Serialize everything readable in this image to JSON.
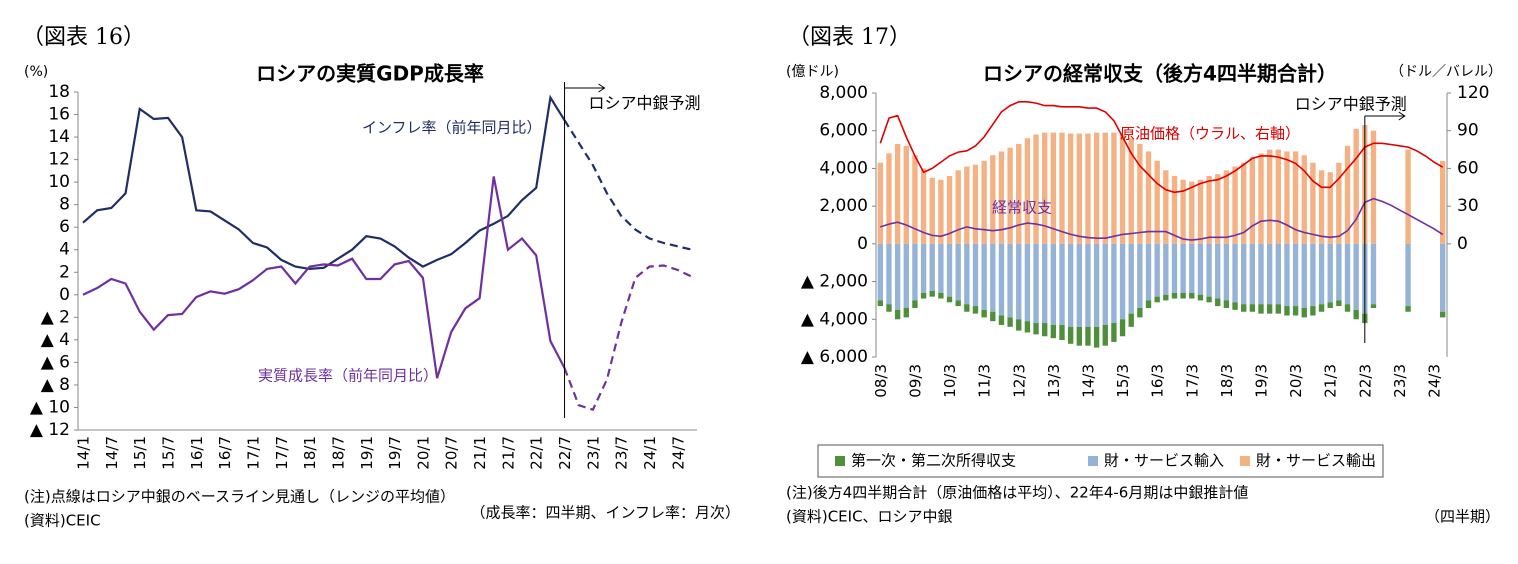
{
  "chart_data": [
    {
      "type": "line",
      "figure_label": "（図表 16）",
      "title": "ロシアの実質GDP成長率",
      "y_unit": "(%)",
      "categories": [
        "14/1",
        null,
        "14/7",
        null,
        "15/1",
        null,
        "15/7",
        null,
        "16/1",
        null,
        "16/7",
        null,
        "17/1",
        null,
        "17/7",
        null,
        "18/1",
        null,
        "18/7",
        null,
        "19/1",
        null,
        "19/7",
        null,
        "20/1",
        null,
        "20/7",
        null,
        "21/1",
        null,
        "21/7",
        null,
        "22/1",
        null,
        "22/7",
        null,
        "23/1",
        null,
        "23/7",
        null,
        "24/1",
        null,
        "24/7",
        null
      ],
      "series": [
        {
          "name": "インフレ率（前年同月比）",
          "color": "#1f2f66",
          "values": [
            6.4,
            7.5,
            7.7,
            9.0,
            16.5,
            15.6,
            15.7,
            14.0,
            7.5,
            7.4,
            6.6,
            5.8,
            4.6,
            4.2,
            3.1,
            2.5,
            2.3,
            2.4,
            3.2,
            4.0,
            5.2,
            5.0,
            4.3,
            3.3,
            2.5,
            3.1,
            3.6,
            4.6,
            5.7,
            6.3,
            7.0,
            8.4,
            9.5,
            17.5,
            15.5,
            13.5,
            11.5,
            9.0,
            7.0,
            5.8,
            5.0,
            4.6,
            4.3,
            4.0
          ]
        },
        {
          "name": "実質成長率（前年同月比）",
          "color": "#7030a0",
          "values": [
            0.0,
            0.6,
            1.4,
            1.0,
            -1.5,
            -3.1,
            -1.8,
            -1.7,
            -0.2,
            0.3,
            0.1,
            0.5,
            1.3,
            2.3,
            2.5,
            1.0,
            2.5,
            2.7,
            2.6,
            3.2,
            1.4,
            1.4,
            2.7,
            3.0,
            1.5,
            -7.4,
            -3.3,
            -1.2,
            -0.3,
            10.5,
            4.0,
            5.0,
            3.5,
            -4.1,
            -6.5,
            -9.8,
            -10.2,
            -7.5,
            -2.5,
            1.5,
            2.5,
            2.6,
            2.2,
            1.6
          ]
        }
      ],
      "ylim": [
        -12,
        18
      ],
      "yticks": [
        18,
        16,
        14,
        12,
        10,
        8,
        6,
        4,
        2,
        0,
        {
          "value": -2,
          "label": "▲ 2"
        },
        {
          "value": -4,
          "label": "▲ 4"
        },
        {
          "value": -6,
          "label": "▲ 6"
        },
        {
          "value": -8,
          "label": "▲ 8"
        },
        {
          "value": -10,
          "label": "▲ 10"
        },
        {
          "value": -12,
          "label": "▲ 12"
        }
      ],
      "grid": false,
      "forecast": {
        "label": "ロシア中銀予測",
        "at": "22/7",
        "line_style": "dashed"
      },
      "notes": [
        "(注)点線はロシア中銀のベースライン見通し（レンジの平均値）",
        "(資料)CEIC"
      ],
      "note_right": "（成長率：四半期、インフレ率：月次）"
    },
    {
      "type": "combo",
      "figure_label": "（図表 17）",
      "title": "ロシアの経常収支（後方4四半期合計）",
      "y_unit": "(億ドル)",
      "y2_unit": "（ドル／バレル）",
      "categories": [
        "08/3",
        null,
        null,
        null,
        "09/3",
        null,
        null,
        null,
        "10/3",
        null,
        null,
        null,
        "11/3",
        null,
        null,
        null,
        "12/3",
        null,
        null,
        null,
        "13/3",
        null,
        null,
        null,
        "14/3",
        null,
        null,
        null,
        "15/3",
        null,
        null,
        null,
        "16/3",
        null,
        null,
        null,
        "17/3",
        null,
        null,
        null,
        "18/3",
        null,
        null,
        null,
        "19/3",
        null,
        null,
        null,
        "20/3",
        null,
        null,
        null,
        "21/3",
        null,
        null,
        null,
        "22/3",
        null,
        null,
        null,
        "23/3",
        null,
        null,
        null,
        "24/3",
        null
      ],
      "series": [
        {
          "name": "第一次・第二次所得収支",
          "type": "bar",
          "color": "#4e8f3a",
          "values": [
            -300,
            -400,
            -500,
            -500,
            -400,
            -300,
            -300,
            -300,
            -300,
            -300,
            -400,
            -400,
            -400,
            -500,
            -500,
            -500,
            -600,
            -600,
            -600,
            -700,
            -700,
            -800,
            -900,
            -1000,
            -1000,
            -1100,
            -1100,
            -1000,
            -900,
            -700,
            -500,
            -400,
            -300,
            -300,
            -300,
            -300,
            -300,
            -300,
            -300,
            -400,
            -400,
            -400,
            -400,
            -400,
            -500,
            -500,
            -500,
            -500,
            -500,
            -500,
            -500,
            -400,
            -300,
            -300,
            -400,
            -500,
            -500,
            -200,
            null,
            null,
            null,
            -300,
            null,
            null,
            null,
            -300
          ]
        },
        {
          "name": "財・サービス輸入",
          "type": "bar",
          "color": "#95b3d7",
          "values": [
            -3000,
            -3200,
            -3500,
            -3400,
            -3000,
            -2600,
            -2500,
            -2600,
            -2800,
            -3000,
            -3200,
            -3300,
            -3500,
            -3600,
            -3800,
            -3900,
            -4000,
            -4100,
            -4200,
            -4200,
            -4300,
            -4300,
            -4400,
            -4400,
            -4400,
            -4400,
            -4300,
            -4200,
            -4000,
            -3700,
            -3400,
            -3000,
            -2800,
            -2700,
            -2600,
            -2600,
            -2600,
            -2700,
            -2800,
            -2900,
            -3000,
            -3100,
            -3200,
            -3200,
            -3200,
            -3200,
            -3200,
            -3300,
            -3300,
            -3400,
            -3300,
            -3200,
            -3100,
            -3000,
            -3200,
            -3500,
            -3700,
            -3200,
            null,
            null,
            null,
            -3300,
            null,
            null,
            null,
            -3600
          ]
        },
        {
          "name": "財・サービス輸出",
          "type": "bar",
          "color": "#f4b183",
          "values": [
            4300,
            4800,
            5300,
            5200,
            4700,
            4000,
            3500,
            3400,
            3600,
            3900,
            4100,
            4200,
            4400,
            4700,
            4900,
            5100,
            5300,
            5600,
            5800,
            5900,
            5900,
            5900,
            5850,
            5850,
            5850,
            5900,
            5900,
            5900,
            5800,
            5600,
            5300,
            4900,
            4400,
            3900,
            3600,
            3400,
            3300,
            3400,
            3600,
            3700,
            3900,
            4100,
            4300,
            4600,
            4800,
            5000,
            5000,
            4900,
            4900,
            4700,
            4300,
            3900,
            3800,
            4300,
            5200,
            6100,
            6300,
            6000,
            null,
            null,
            null,
            5000,
            null,
            null,
            null,
            4400
          ]
        },
        {
          "name": "経常収支",
          "type": "line",
          "color": "#7030a0",
          "values": [
            900,
            1050,
            1150,
            1000,
            800,
            600,
            450,
            400,
            550,
            750,
            900,
            800,
            750,
            700,
            750,
            850,
            1000,
            1100,
            1050,
            950,
            800,
            650,
            500,
            400,
            330,
            300,
            300,
            400,
            500,
            550,
            600,
            650,
            650,
            650,
            450,
            250,
            200,
            250,
            350,
            350,
            350,
            450,
            600,
            950,
            1200,
            1250,
            1200,
            1000,
            750,
            600,
            500,
            400,
            350,
            400,
            700,
            1300,
            2200,
            2400,
            2250,
            2050,
            1800,
            1550,
            1300,
            1050,
            800,
            500
          ]
        },
        {
          "name": "原油価格（ウラル、右軸）",
          "type": "line",
          "axis": "y2",
          "color": "#e00000",
          "values": [
            80,
            100,
            102,
            85,
            70,
            57,
            60,
            65,
            70,
            73,
            74,
            78,
            85,
            95,
            105,
            110,
            113,
            113,
            112,
            110,
            110,
            109,
            109,
            109,
            108,
            108,
            105,
            98,
            85,
            72,
            62,
            55,
            48,
            43,
            41,
            42,
            45,
            48,
            50,
            51,
            54,
            58,
            63,
            68,
            70,
            70,
            69,
            67,
            64,
            58,
            50,
            45,
            45,
            52,
            60,
            68,
            77,
            80,
            80,
            79,
            78,
            77,
            74,
            70,
            65,
            61
          ]
        }
      ],
      "ylim": [
        -6000,
        8000
      ],
      "yticks": [
        {
          "value": 8000,
          "label": "8,000"
        },
        {
          "value": 6000,
          "label": "6,000"
        },
        {
          "value": 4000,
          "label": "4,000"
        },
        {
          "value": 2000,
          "label": "2,000"
        },
        0,
        {
          "value": -2000,
          "label": "▲ 2,000"
        },
        {
          "value": -4000,
          "label": "▲ 4,000"
        },
        {
          "value": -6000,
          "label": "▲ 6,000"
        }
      ],
      "y2lim": [
        -90,
        120
      ],
      "y2ticks": [
        0,
        30,
        60,
        90,
        120
      ],
      "grid": false,
      "legend": "bottom",
      "forecast": {
        "label": "ロシア中銀予測",
        "at": "22/3",
        "line_style": "solid"
      },
      "notes": [
        "(注)後方4四半期合計（原油価格は平均）、22年4-6月期は中銀推計値",
        "(資料)CEIC、ロシア中銀"
      ],
      "note_right": "（四半期）"
    }
  ]
}
